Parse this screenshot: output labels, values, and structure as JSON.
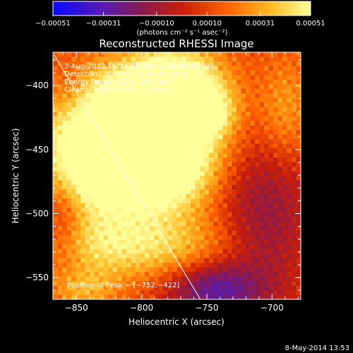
{
  "chart_data": {
    "type": "heatmap",
    "title": "Reconstructed RHESSI Image",
    "xlabel": "Heliocentric X (arcsec)",
    "ylabel": "Heliocentric Y (arcsec)",
    "xlim": [
      -868,
      -678
    ],
    "ylim": [
      -567,
      -374
    ],
    "x_ticks": [
      -850,
      -800,
      -750,
      -700
    ],
    "x_tick_labels": [
      "−850",
      "−800",
      "−750",
      "−700"
    ],
    "y_ticks": [
      -400,
      -450,
      -500,
      -550
    ],
    "y_tick_labels": [
      "−400",
      "−450",
      "−500",
      "−550"
    ],
    "colorbar": {
      "range": [
        -0.00051,
        0.00051
      ],
      "ticks": [
        -0.00051,
        -0.00031,
        -0.0001,
        0.0001,
        0.00031,
        0.00051
      ],
      "tick_labels": [
        "−0.00051",
        "−0.00031",
        "−0.00010",
        "0.00010",
        "0.00031",
        "0.00051"
      ],
      "units": "(photons cm⁻² s⁻¹ asec⁻²)"
    },
    "colormap_stops": [
      "#0a0aff",
      "#5a1ab0",
      "#8a1a4a",
      "#c81e0a",
      "#ff6400",
      "#ffbe28",
      "#ffff9b"
    ],
    "annotations": [
      "3-Aug-2012 16:34:52.000 to 16:36:40.000",
      "Detectors: 3F 5F 6F 7F 8F 9F, Att 0",
      "Energy Range: 12.0 - 25.0 keV",
      "Clean    Total counts: 3.31E+03"
    ],
    "peak_label": "Position of Peak = [−752,−422]",
    "peak": [
      -752,
      -422
    ],
    "limb_line": [
      [
        -867,
        -376
      ],
      [
        -755,
        -567
      ]
    ],
    "sources": [
      {
        "x": -806,
        "y": -432,
        "amp": 1.35,
        "sx": 42,
        "sy": 30
      },
      {
        "x": -775,
        "y": -400,
        "amp": 0.9,
        "sx": 25,
        "sy": 20
      },
      {
        "x": -788,
        "y": -468,
        "amp": 0.85,
        "sx": 28,
        "sy": 24
      },
      {
        "x": -840,
        "y": -470,
        "amp": 0.6,
        "sx": 26,
        "sy": 28
      },
      {
        "x": -810,
        "y": -525,
        "amp": 0.6,
        "sx": 50,
        "sy": 18
      },
      {
        "x": -752,
        "y": -422,
        "amp": 0.55,
        "sx": 14,
        "sy": 12
      },
      {
        "x": -845,
        "y": -560,
        "amp": 0.35,
        "sx": 20,
        "sy": 12
      },
      {
        "x": -690,
        "y": -420,
        "amp": 0.35,
        "sx": 14,
        "sy": 30
      },
      {
        "x": -705,
        "y": -500,
        "amp": -0.45,
        "sx": 25,
        "sy": 50
      },
      {
        "x": -745,
        "y": -560,
        "amp": -0.7,
        "sx": 25,
        "sy": 15
      },
      {
        "x": -860,
        "y": -505,
        "amp": -0.35,
        "sx": 12,
        "sy": 25
      },
      {
        "x": -855,
        "y": -410,
        "amp": -0.2,
        "sx": 12,
        "sy": 18
      }
    ]
  },
  "footer": {
    "timestamp": "8-May-2014 13:53"
  }
}
